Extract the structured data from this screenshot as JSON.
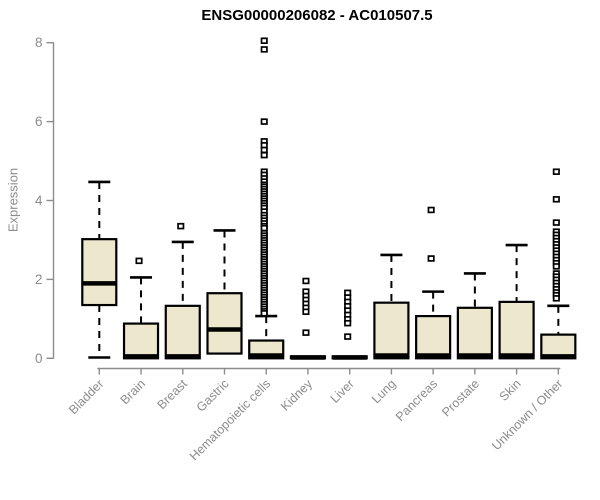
{
  "chart_data": {
    "type": "boxplot",
    "title": "ENSG00000206082 - AC010507.5",
    "xlabel": "",
    "ylabel": "Expression",
    "ylim": [
      0,
      8
    ],
    "y_ticks": [
      0,
      2,
      4,
      6,
      8
    ],
    "grid": false,
    "legend": "none",
    "categories": [
      "Bladder",
      "Brain",
      "Breast",
      "Gastric",
      "Hematopoietic cells",
      "Kidney",
      "Liver",
      "Lung",
      "Pancreas",
      "Prostate",
      "Skin",
      "Unknown / Other"
    ],
    "boxes": [
      {
        "category": "Bladder",
        "whisker_low": 0.02,
        "q1": 1.35,
        "median": 1.9,
        "q3": 3.02,
        "whisker_high": 4.47,
        "outliers": []
      },
      {
        "category": "Brain",
        "whisker_low": 0,
        "q1": 0,
        "median": 0.05,
        "q3": 0.88,
        "whisker_high": 2.05,
        "outliers": [
          2.47
        ]
      },
      {
        "category": "Breast",
        "whisker_low": 0,
        "q1": 0,
        "median": 0.05,
        "q3": 1.33,
        "whisker_high": 2.95,
        "outliers": [
          3.35
        ]
      },
      {
        "category": "Gastric",
        "whisker_low": 0.12,
        "q1": 0.12,
        "median": 0.73,
        "q3": 1.65,
        "whisker_high": 3.24,
        "outliers": []
      },
      {
        "category": "Hematopoietic cells",
        "whisker_low": 0,
        "q1": 0,
        "median": 0.07,
        "q3": 0.45,
        "whisker_high": 1.07,
        "outliers": [
          8.05,
          7.83,
          6.0,
          5.5,
          5.4,
          5.28,
          5.15,
          4.73,
          4.65,
          4.56,
          4.48,
          4.4,
          4.35,
          4.29,
          4.23,
          4.17,
          4.11,
          4.05,
          3.99,
          3.93,
          3.87,
          3.81,
          3.72,
          3.63,
          3.56,
          3.49,
          3.42,
          3.35,
          3.3,
          3.17,
          3.11,
          3.05,
          2.99,
          2.93,
          2.87,
          2.81,
          2.75,
          2.69,
          2.63,
          2.57,
          2.51,
          2.45,
          2.39,
          2.33,
          2.27,
          2.21,
          2.15,
          2.09,
          2.03,
          1.97,
          1.91,
          1.85,
          1.79,
          1.73,
          1.67,
          1.61,
          1.55,
          1.49,
          1.43,
          1.37,
          1.31,
          1.25,
          1.19,
          1.14
        ]
      },
      {
        "category": "Kidney",
        "whisker_low": 0,
        "q1": 0,
        "median": 0.02,
        "q3": 0.05,
        "whisker_high": 0.05,
        "outliers": [
          1.96,
          1.69,
          1.58,
          1.48,
          1.38,
          1.28,
          1.18,
          0.65
        ]
      },
      {
        "category": "Liver",
        "whisker_low": 0,
        "q1": 0,
        "median": 0.02,
        "q3": 0.05,
        "whisker_high": 0.05,
        "outliers": [
          1.66,
          1.54,
          1.43,
          1.32,
          1.21,
          1.1,
          0.99,
          0.89,
          0.55
        ]
      },
      {
        "category": "Lung",
        "whisker_low": 0,
        "q1": 0,
        "median": 0.07,
        "q3": 1.41,
        "whisker_high": 2.62,
        "outliers": []
      },
      {
        "category": "Pancreas",
        "whisker_low": 0,
        "q1": 0,
        "median": 0.07,
        "q3": 1.07,
        "whisker_high": 1.69,
        "outliers": [
          3.76,
          2.53
        ]
      },
      {
        "category": "Prostate",
        "whisker_low": 0,
        "q1": 0,
        "median": 0.07,
        "q3": 1.28,
        "whisker_high": 2.15,
        "outliers": []
      },
      {
        "category": "Skin",
        "whisker_low": 0,
        "q1": 0,
        "median": 0.07,
        "q3": 1.43,
        "whisker_high": 2.87,
        "outliers": []
      },
      {
        "category": "Unknown / Other",
        "whisker_low": 0,
        "q1": 0,
        "median": 0.05,
        "q3": 0.6,
        "whisker_high": 1.33,
        "outliers": [
          4.73,
          4.03,
          3.44,
          3.21,
          3.13,
          3.05,
          2.97,
          2.89,
          2.81,
          2.73,
          2.65,
          2.57,
          2.49,
          2.41,
          2.33,
          2.15,
          2.07,
          1.99,
          1.91,
          1.83,
          1.75,
          1.67,
          1.6,
          1.52
        ]
      }
    ],
    "colors": {
      "box_fill": "#ece7cd",
      "box_stroke": "#000000",
      "median": "#000000",
      "whisker": "#000000",
      "outlier_stroke": "#000000",
      "outlier_fill": "#ffffff",
      "axis": "#8c8c8c",
      "tick_label": "#8c8c8c",
      "title": "#000000",
      "background": "#ffffff"
    }
  }
}
